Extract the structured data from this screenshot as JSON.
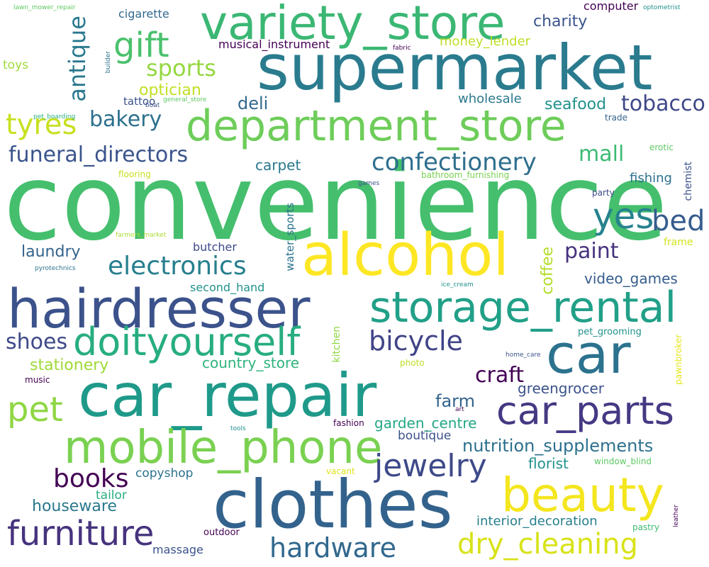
{
  "words": {
    "convenience": "convenience",
    "supermarket": "supermarket",
    "variety_store": "variety_store",
    "department_store": "department_store",
    "alcohol": "alcohol",
    "hairdresser": "hairdresser",
    "storage_rental": "storage_rental",
    "car": "car",
    "car_repair": "car_repair",
    "clothes": "clothes",
    "mobile_phone": "mobile_phone",
    "beauty": "beauty",
    "car_parts": "car_parts",
    "doityourself": "doityourself",
    "furniture": "furniture",
    "jewelry": "jewelry",
    "hardware": "hardware",
    "dry_cleaning": "dry_cleaning",
    "gift": "gift",
    "pet": "pet",
    "yes": "yes",
    "bed": "bed",
    "tyres": "tyres",
    "electronics": "electronics",
    "bicycle": "bicycle",
    "books": "books",
    "antique": "antique",
    "sports": "sports",
    "confectionery": "confectionery",
    "funeral_directors": "funeral_directors",
    "tobacco": "tobacco",
    "mall": "mall",
    "bakery": "bakery",
    "shoes": "shoes",
    "craft": "craft",
    "paint": "paint",
    "nutrition_supplements": "nutrition_supplements",
    "houseware": "houseware",
    "optician": "optician",
    "charity": "charity",
    "deli": "deli",
    "farm": "farm",
    "stationery": "stationery",
    "laundry": "laundry",
    "coffee": "coffee",
    "seafood": "seafood",
    "video_games": "video_games",
    "greengrocer": "greengrocer",
    "florist": "florist",
    "garden_centre": "garden_centre",
    "interior_decoration": "interior_decoration",
    "carpet": "carpet",
    "country_store": "country_store",
    "money_lender": "money_lender",
    "musical_instrument": "musical_instrument",
    "cigarette": "cigarette",
    "fishing": "fishing",
    "wholesale": "wholesale",
    "boutique": "boutique",
    "copyshop": "copyshop",
    "tailor": "tailor",
    "butcher": "butcher",
    "second_hand": "second_hand",
    "massage": "massage",
    "toys": "toys",
    "computer": "computer",
    "tattoo": "tattoo",
    "water_sports": "water_sports",
    "chemist": "chemist",
    "kitchen": "kitchen",
    "frame": "frame",
    "outdoor": "outdoor",
    "pawnbroker": "pawnbroker",
    "pet_grooming": "pet_grooming",
    "vacant": "vacant",
    "window_blind": "window_blind",
    "fashion": "fashion",
    "pastry": "pastry",
    "music": "music",
    "party": "party",
    "photo": "photo",
    "flooring": "flooring",
    "erotic": "erotic",
    "trade": "trade",
    "bathroom_furnishing": "bathroom_furnishing",
    "ice_cream": "ice_cream",
    "tools": "tools",
    "home_care": "home_care",
    "lawn_mower_repair": "lawn_mower_repair",
    "optometrist": "optometrist",
    "builder": "builder",
    "fabric": "fabric",
    "general_store": "general_store",
    "boat": "boat",
    "pet_boarding": "pet_boarding",
    "games": "games",
    "farmers_market": "farmers_market",
    "pyrotechnics": "pyrotechnics",
    "art": "art",
    "leather": "leather"
  },
  "palette": {
    "dark_purple": "#440154",
    "indigo": "#472d7b",
    "slate_blue": "#3b528b",
    "steel_blue": "#2c728e",
    "teal": "#21918c",
    "sea_green": "#28ae80",
    "green": "#5ec962",
    "lime": "#addc30",
    "yellow": "#fde725"
  }
}
